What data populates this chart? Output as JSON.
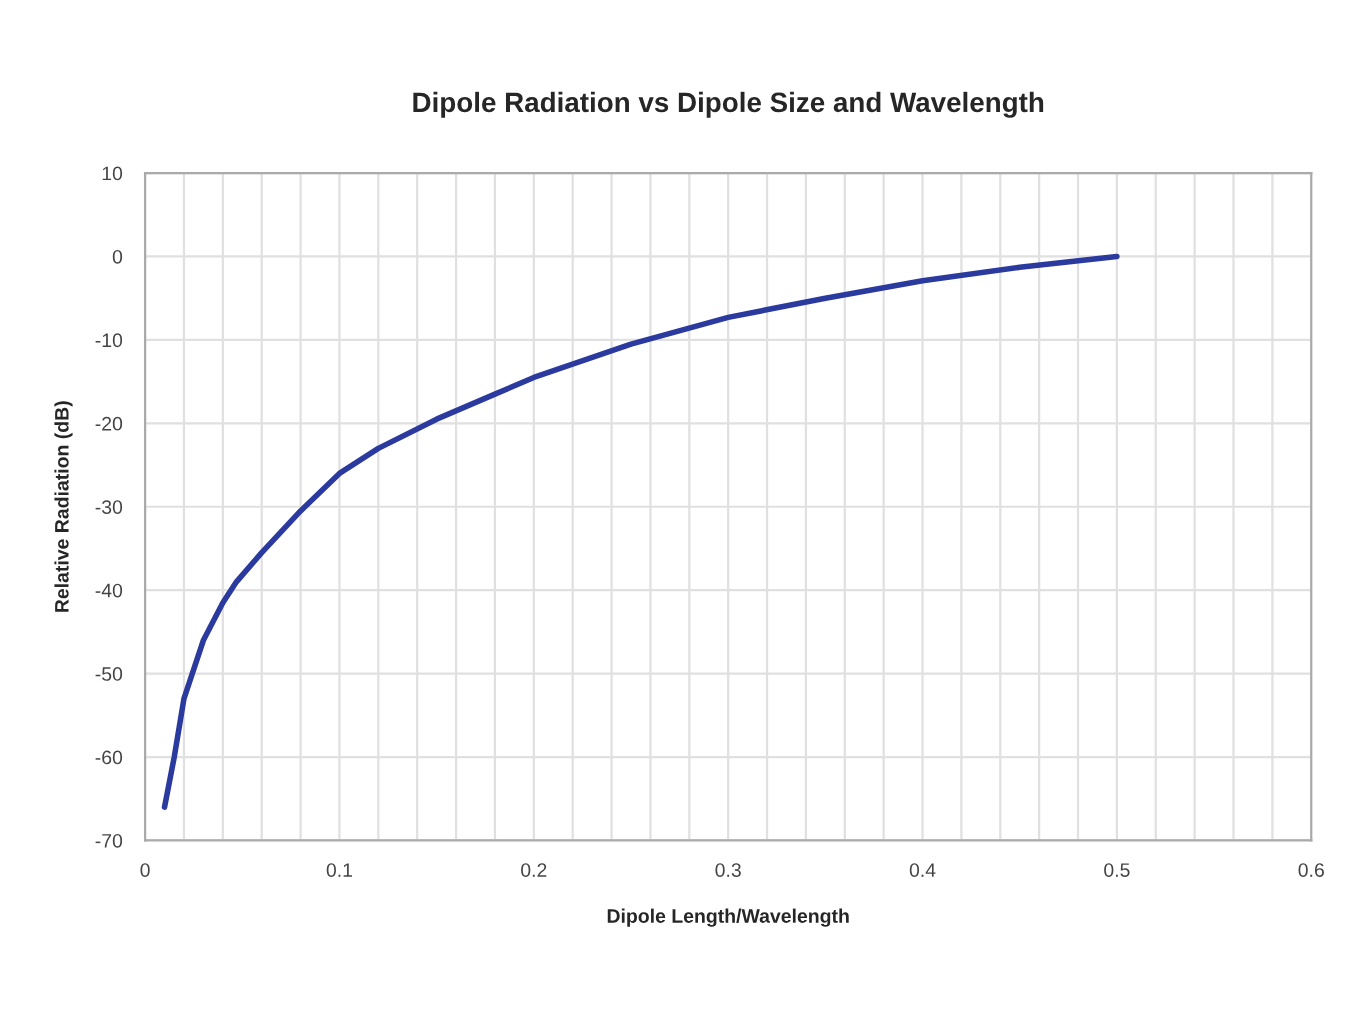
{
  "chart_data": {
    "type": "line",
    "title": "Dipole Radiation vs Dipole Size and Wavelength",
    "xlabel": "Dipole Length/Wavelength",
    "ylabel": "Relative Radiation (dB)",
    "series": [
      {
        "color": "#2b3a9e",
        "x": [
          0.01,
          0.015,
          0.02,
          0.03,
          0.04,
          0.047,
          0.06,
          0.08,
          0.1,
          0.12,
          0.15,
          0.18,
          0.2,
          0.25,
          0.3,
          0.35,
          0.4,
          0.45,
          0.5
        ],
        "values": [
          -66,
          -60,
          -53,
          -46,
          -41.5,
          -39,
          -35.5,
          -30.5,
          -26,
          -23,
          -19.5,
          -16.5,
          -14.5,
          -10.5,
          -7.3,
          -5,
          -2.9,
          -1.3,
          0
        ]
      }
    ],
    "xlim": [
      0,
      0.6
    ],
    "ylim": [
      -70,
      10
    ],
    "xticks": [
      0,
      {
        "value": 0.02,
        "label": null
      },
      {
        "value": 0.04,
        "label": null
      },
      {
        "value": 0.06,
        "label": null
      },
      {
        "value": 0.08,
        "label": null
      },
      0.1,
      {
        "value": 0.12,
        "label": null
      },
      {
        "value": 0.14,
        "label": null
      },
      {
        "value": 0.16,
        "label": null
      },
      {
        "value": 0.18,
        "label": null
      },
      0.2,
      {
        "value": 0.22,
        "label": null
      },
      {
        "value": 0.24,
        "label": null
      },
      {
        "value": 0.26,
        "label": null
      },
      {
        "value": 0.28,
        "label": null
      },
      0.3,
      {
        "value": 0.32,
        "label": null
      },
      {
        "value": 0.34,
        "label": null
      },
      {
        "value": 0.36,
        "label": null
      },
      {
        "value": 0.38,
        "label": null
      },
      0.4,
      {
        "value": 0.42,
        "label": null
      },
      {
        "value": 0.44,
        "label": null
      },
      {
        "value": 0.46,
        "label": null
      },
      {
        "value": 0.48,
        "label": null
      },
      0.5,
      {
        "value": 0.52,
        "label": null
      },
      {
        "value": 0.54,
        "label": null
      },
      {
        "value": 0.56,
        "label": null
      },
      {
        "value": 0.58,
        "label": null
      },
      0.6
    ],
    "yticks": [
      -70,
      -60,
      -50,
      -40,
      -30,
      -20,
      -10,
      0,
      10
    ],
    "grid": true,
    "marker": "none",
    "line_style": "solid"
  }
}
